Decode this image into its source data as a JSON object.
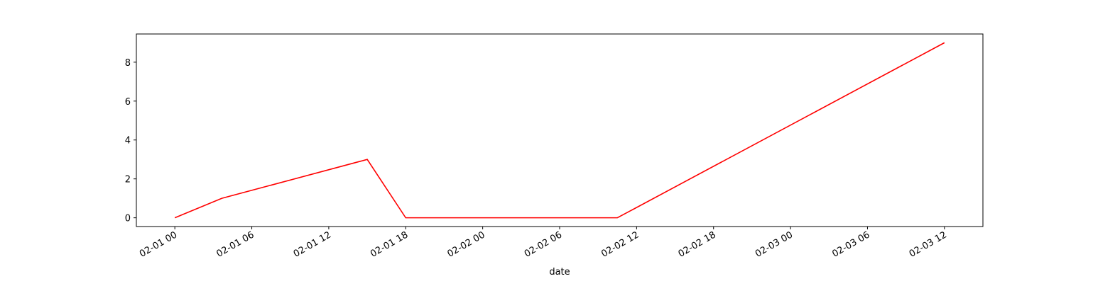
{
  "chart_data": {
    "type": "line",
    "x_label": "date",
    "x": [
      "02-01 00:00",
      "02-01 03:40",
      "02-01 15:00",
      "02-01 18:00",
      "02-02 10:30",
      "02-03 12:00"
    ],
    "series": [
      {
        "color": "#ff0000",
        "values": [
          0,
          1,
          3,
          0,
          0,
          9
        ]
      }
    ],
    "xlim": [
      "01-31 21:00",
      "02-03 15:00"
    ],
    "xticks": [
      {
        "value": "02-01 00:00",
        "label": "02-01 00"
      },
      {
        "value": "02-01 06:00",
        "label": "02-01 06"
      },
      {
        "value": "02-01 12:00",
        "label": "02-01 12"
      },
      {
        "value": "02-01 18:00",
        "label": "02-01 18"
      },
      {
        "value": "02-02 00:00",
        "label": "02-02 00"
      },
      {
        "value": "02-02 06:00",
        "label": "02-02 06"
      },
      {
        "value": "02-02 12:00",
        "label": "02-02 12"
      },
      {
        "value": "02-02 18:00",
        "label": "02-02 18"
      },
      {
        "value": "02-03 00:00",
        "label": "02-03 00"
      },
      {
        "value": "02-03 06:00",
        "label": "02-03 06"
      },
      {
        "value": "02-03 12:00",
        "label": "02-03 12"
      }
    ],
    "ylim": [
      -0.45,
      9.45
    ],
    "yticks": [
      0,
      2,
      4,
      6,
      8
    ],
    "grid": false
  }
}
